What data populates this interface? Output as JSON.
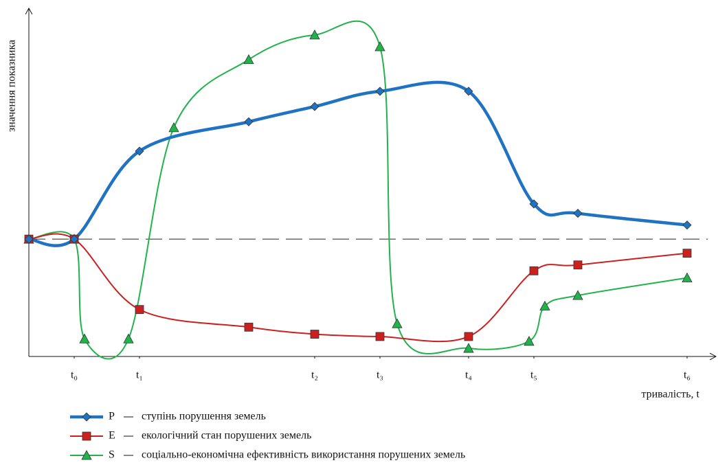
{
  "chart_data": {
    "type": "line",
    "y_label": "значення показника",
    "x_label": "тривалість, t",
    "xlim": [
      0,
      100
    ],
    "ylim": [
      -10,
      19.5
    ],
    "xticks": [
      {
        "value": 6.6,
        "label": "t₀"
      },
      {
        "value": 16.1,
        "label": "t₁"
      },
      {
        "value": 41.6,
        "label": "t₂"
      },
      {
        "value": 51.1,
        "label": "t₃"
      },
      {
        "value": 64.0,
        "label": "t₄"
      },
      {
        "value": 73.5,
        "label": "t₅"
      },
      {
        "value": 95.8,
        "label": "t₆"
      }
    ],
    "reference_line": 0,
    "series": [
      {
        "name": "P",
        "label": "ступінь порушення земель",
        "color": "#1f73c2",
        "marker": "diamond",
        "x": [
          0,
          6.6,
          16.1,
          32.0,
          41.6,
          51.1,
          64.0,
          73.5,
          79.9,
          95.8
        ],
        "values": [
          0,
          0,
          7.5,
          10.0,
          11.3,
          12.6,
          12.6,
          3.0,
          2.2,
          1.2
        ]
      },
      {
        "name": "E",
        "label": "екологічний стан порушених земель",
        "color": "#cc1f1f",
        "marker": "square",
        "x": [
          0,
          6.6,
          16.1,
          32.0,
          41.6,
          51.1,
          64.0,
          73.5,
          79.9,
          95.8
        ],
        "values": [
          0,
          0,
          -6.0,
          -7.5,
          -8.1,
          -8.3,
          -8.3,
          -2.7,
          -2.2,
          -1.2
        ]
      },
      {
        "name": "S",
        "label": "соціально-економічна ефективність використання порушених земель",
        "color": "#22b24c",
        "marker": "triangle",
        "x": [
          0,
          6.6,
          8.1,
          14.5,
          21.1,
          32.0,
          41.6,
          51.1,
          53.6,
          64.0,
          72.8,
          75.1,
          79.9,
          95.8
        ],
        "values": [
          0,
          0,
          -8.5,
          -8.5,
          9.5,
          15.3,
          17.4,
          16.4,
          -7.2,
          -9.3,
          -8.7,
          -5.7,
          -4.8,
          -3.3
        ]
      }
    ]
  }
}
